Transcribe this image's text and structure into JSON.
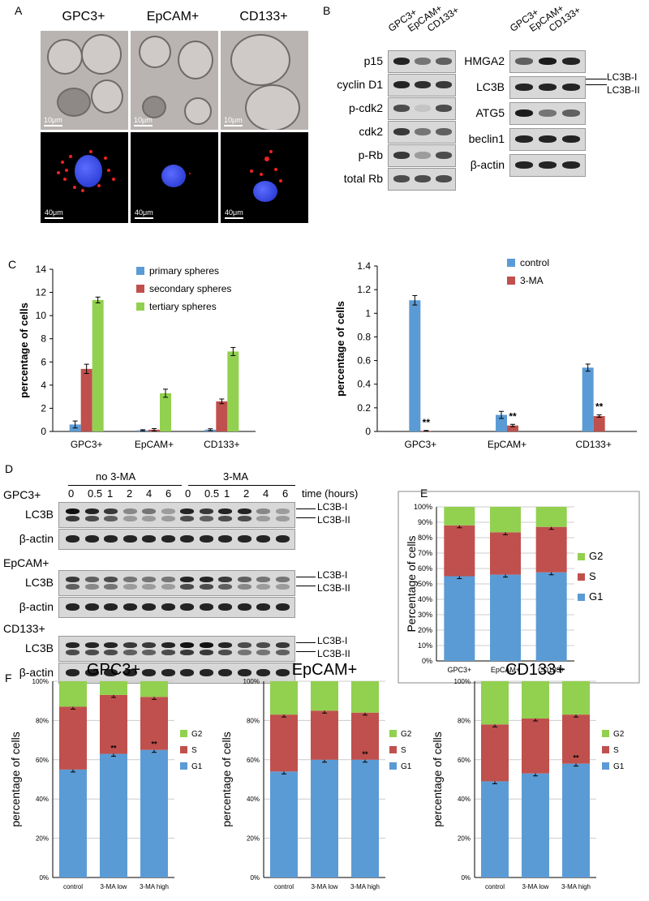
{
  "panel_letters": {
    "A": "A",
    "B": "B",
    "C": "C",
    "D": "D",
    "E": "E",
    "F": "F"
  },
  "panelA": {
    "headers": [
      "GPC3+",
      "EpCAM+",
      "CD133+"
    ],
    "em_scale": "10μm",
    "fl_scale": "40μm"
  },
  "panelB": {
    "lanes": [
      "GPC3+",
      "EpCAM+",
      "CD133+"
    ],
    "left_rows": [
      "p15",
      "cyclin D1",
      "p-cdk2",
      "cdk2",
      "p-Rb",
      "total Rb"
    ],
    "right_rows": [
      "HMGA2",
      "LC3B",
      "ATG5",
      "beclin1",
      "β-actin"
    ],
    "right_annotations": [
      "LC3B-I",
      "LC3B-II"
    ]
  },
  "panelD": {
    "group_labels": [
      "no 3-MA",
      "3-MA"
    ],
    "times": [
      "0",
      "0.5",
      "1",
      "2",
      "4",
      "6",
      "0",
      "0.5",
      "1",
      "2",
      "4",
      "6"
    ],
    "time_label": "time (hours)",
    "cells": [
      "GPC3+",
      "EpCAM+",
      "CD133+"
    ],
    "row_labels": [
      "LC3B",
      "β-actin"
    ],
    "annotations": [
      "LC3B-I",
      "LC3B-II"
    ]
  },
  "colors": {
    "blue": "#5b9bd5",
    "red": "#c0504d",
    "green": "#92d050"
  },
  "chart_data": [
    {
      "id": "C-left",
      "type": "bar",
      "categories": [
        "GPC3+",
        "EpCAM+",
        "CD133+"
      ],
      "series": [
        {
          "name": "primary spheres",
          "values": [
            0.6,
            0.1,
            0.15
          ],
          "err": [
            0.3,
            0.05,
            0.08
          ]
        },
        {
          "name": "secondary spheres",
          "values": [
            5.4,
            0.15,
            2.6
          ],
          "err": [
            0.4,
            0.1,
            0.2
          ]
        },
        {
          "name": "tertiary spheres",
          "values": [
            11.35,
            3.3,
            6.9
          ],
          "err": [
            0.25,
            0.35,
            0.35
          ]
        }
      ],
      "ylabel": "percentage of cells",
      "ylim": [
        0,
        14
      ],
      "yticks": [
        "0",
        "2",
        "4",
        "6",
        "8",
        "10",
        "12",
        "14"
      ]
    },
    {
      "id": "C-right",
      "type": "bar",
      "categories": [
        "GPC3+",
        "EpCAM+",
        "CD133+"
      ],
      "series": [
        {
          "name": "control",
          "values": [
            1.11,
            0.14,
            0.54
          ],
          "err": [
            0.04,
            0.03,
            0.03
          ]
        },
        {
          "name": "3-MA",
          "values": [
            0.005,
            0.05,
            0.13
          ],
          "err": [
            0.003,
            0.01,
            0.01
          ]
        }
      ],
      "sig": [
        "**",
        "**",
        "**"
      ],
      "ylabel": "percentage of cells",
      "ylim": [
        0,
        1.4
      ],
      "yticks": [
        "0",
        "0.2",
        "0.4",
        "0.6",
        "0.8",
        "1",
        "1.2",
        "1.4"
      ]
    },
    {
      "id": "E",
      "type": "bar",
      "stacked": true,
      "categories": [
        "GPC3+",
        "EpCAM+",
        "CD133+"
      ],
      "series": [
        {
          "name": "G1",
          "values": [
            55,
            56,
            57.5
          ]
        },
        {
          "name": "S",
          "values": [
            33,
            27.5,
            29.5
          ]
        },
        {
          "name": "G2",
          "values": [
            12,
            16.5,
            13
          ]
        }
      ],
      "ylabel": "Percentage of cells",
      "ylim": [
        0,
        100
      ],
      "yticks": [
        "0%",
        "10%",
        "20%",
        "30%",
        "40%",
        "50%",
        "60%",
        "70%",
        "80%",
        "90%",
        "100%"
      ]
    },
    {
      "id": "F-GPC3",
      "type": "bar",
      "stacked": true,
      "title": "GPC3+",
      "categories": [
        "control",
        "3-MA low",
        "3-MA high"
      ],
      "series": [
        {
          "name": "G1",
          "values": [
            55,
            63,
            65
          ]
        },
        {
          "name": "S",
          "values": [
            32,
            30,
            27
          ]
        },
        {
          "name": "G2",
          "values": [
            13,
            7,
            8
          ]
        }
      ],
      "sig": [
        "",
        "**",
        "**"
      ],
      "ylabel": "percentage of cells",
      "ylim": [
        0,
        100
      ],
      "yticks": [
        "0%",
        "20%",
        "40%",
        "60%",
        "80%",
        "100%"
      ]
    },
    {
      "id": "F-EpCAM",
      "type": "bar",
      "stacked": true,
      "title": "EpCAM+",
      "categories": [
        "control",
        "3-MA low",
        "3-MA high"
      ],
      "series": [
        {
          "name": "G1",
          "values": [
            54,
            60,
            60
          ]
        },
        {
          "name": "S",
          "values": [
            29,
            25,
            24
          ]
        },
        {
          "name": "G2",
          "values": [
            17,
            15,
            16
          ]
        }
      ],
      "sig": [
        "",
        "",
        "**"
      ],
      "ylabel": "percentage of cells",
      "ylim": [
        0,
        100
      ],
      "yticks": [
        "0%",
        "20%",
        "40%",
        "60%",
        "80%",
        "100%"
      ]
    },
    {
      "id": "F-CD133",
      "type": "bar",
      "stacked": true,
      "title": "CD133+",
      "categories": [
        "control",
        "3-MA low",
        "3-MA high"
      ],
      "series": [
        {
          "name": "G1",
          "values": [
            49,
            53,
            58
          ]
        },
        {
          "name": "S",
          "values": [
            29,
            28,
            25
          ]
        },
        {
          "name": "G2",
          "values": [
            22,
            19,
            17
          ]
        }
      ],
      "sig": [
        "",
        "",
        "**"
      ],
      "ylabel": "percentage of cells",
      "ylim": [
        0,
        100
      ],
      "yticks": [
        "0%",
        "20%",
        "40%",
        "60%",
        "80%",
        "100%"
      ]
    }
  ]
}
